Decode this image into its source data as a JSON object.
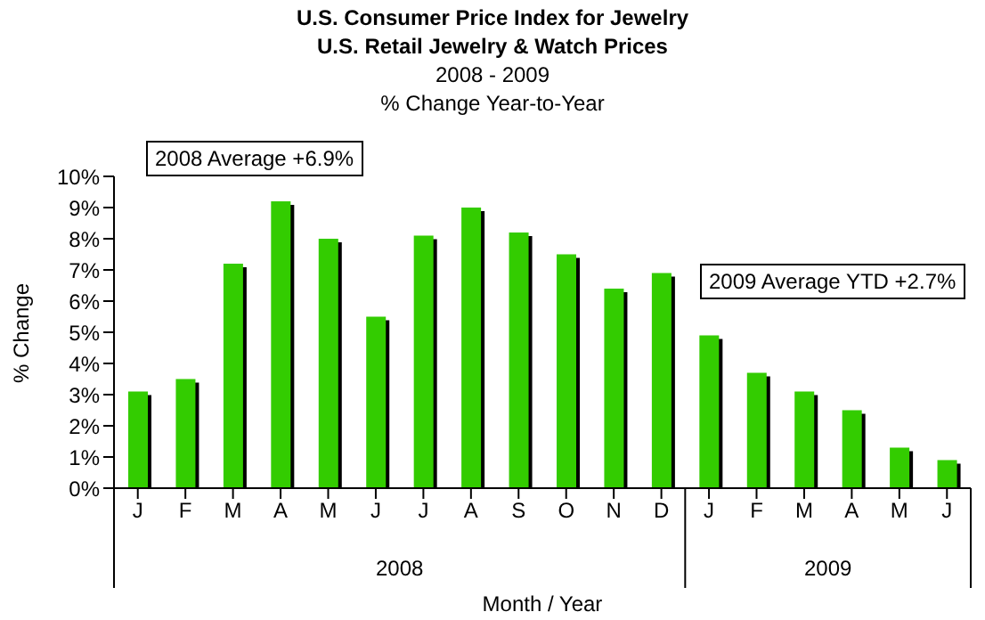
{
  "chart_data": {
    "type": "bar",
    "title": "U.S. Consumer Price Index for Jewelry\nU.S. Retail Jewelry & Watch Prices",
    "subtitle": "2008 - 2009\n% Change Year-to-Year",
    "xlabel": "Month / Year",
    "ylabel": "% Change",
    "categories": [
      "J",
      "F",
      "M",
      "A",
      "M",
      "J",
      "J",
      "A",
      "S",
      "O",
      "N",
      "D",
      "J",
      "F",
      "M",
      "A",
      "M",
      "J"
    ],
    "values": [
      3.1,
      3.5,
      7.2,
      9.2,
      8.0,
      5.5,
      8.1,
      9.0,
      8.2,
      7.5,
      6.4,
      6.9,
      4.9,
      3.7,
      3.1,
      2.5,
      1.3,
      0.9
    ],
    "color": "#33cc00",
    "ylim": [
      0,
      10
    ],
    "yticks": [
      {
        "value": 0,
        "label": "0%"
      },
      {
        "value": 1,
        "label": "1%"
      },
      {
        "value": 2,
        "label": "2%"
      },
      {
        "value": 3,
        "label": "3%"
      },
      {
        "value": 4,
        "label": "4%"
      },
      {
        "value": 5,
        "label": "5%"
      },
      {
        "value": 6,
        "label": "6%"
      },
      {
        "value": 7,
        "label": "7%"
      },
      {
        "value": 8,
        "label": "8%"
      },
      {
        "value": 9,
        "label": "9%"
      },
      {
        "value": 10,
        "label": "10%"
      }
    ],
    "annotations": [
      "2008 Average +6.9%",
      "2009 Average YTD +2.7%",
      "2008",
      "2009"
    ]
  }
}
